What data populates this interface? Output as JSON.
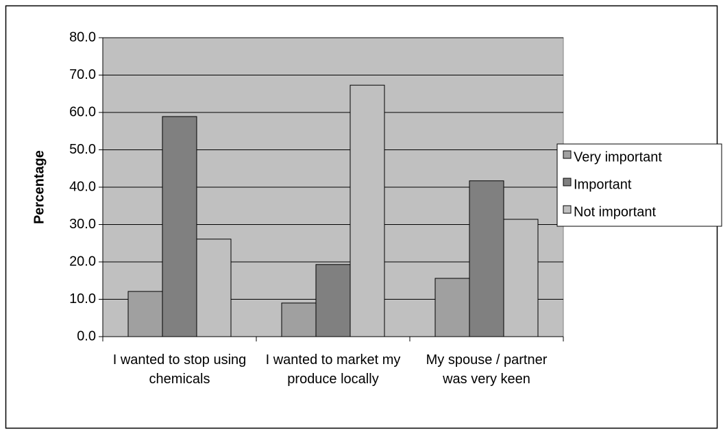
{
  "chart_data": {
    "type": "bar",
    "y_label": "Percentage",
    "categories": [
      "I wanted to stop using chemicals",
      "I wanted to market my produce locally",
      "My spouse / partner was very keen"
    ],
    "series": [
      {
        "name": "Very important",
        "color": "#a0a0a0",
        "values": [
          12.1,
          9.0,
          15.6
        ]
      },
      {
        "name": "Important",
        "color": "#808080",
        "values": [
          58.9,
          19.3,
          41.7
        ]
      },
      {
        "name": "Not important",
        "color": "#c0c0c0",
        "values": [
          26.1,
          67.3,
          31.4
        ]
      }
    ],
    "ylim": [
      0,
      80
    ],
    "yticks": [
      {
        "value": 0,
        "label": "0.0"
      },
      {
        "value": 10,
        "label": "10.0"
      },
      {
        "value": 20,
        "label": "20.0"
      },
      {
        "value": 30,
        "label": "30.0"
      },
      {
        "value": 40,
        "label": "40.0"
      },
      {
        "value": 50,
        "label": "50.0"
      },
      {
        "value": 60,
        "label": "60.0"
      },
      {
        "value": 70,
        "label": "70.0"
      },
      {
        "value": 80,
        "label": "80.0"
      }
    ],
    "grid": true,
    "plot_background": "#c0c0c0",
    "legend": "right"
  }
}
